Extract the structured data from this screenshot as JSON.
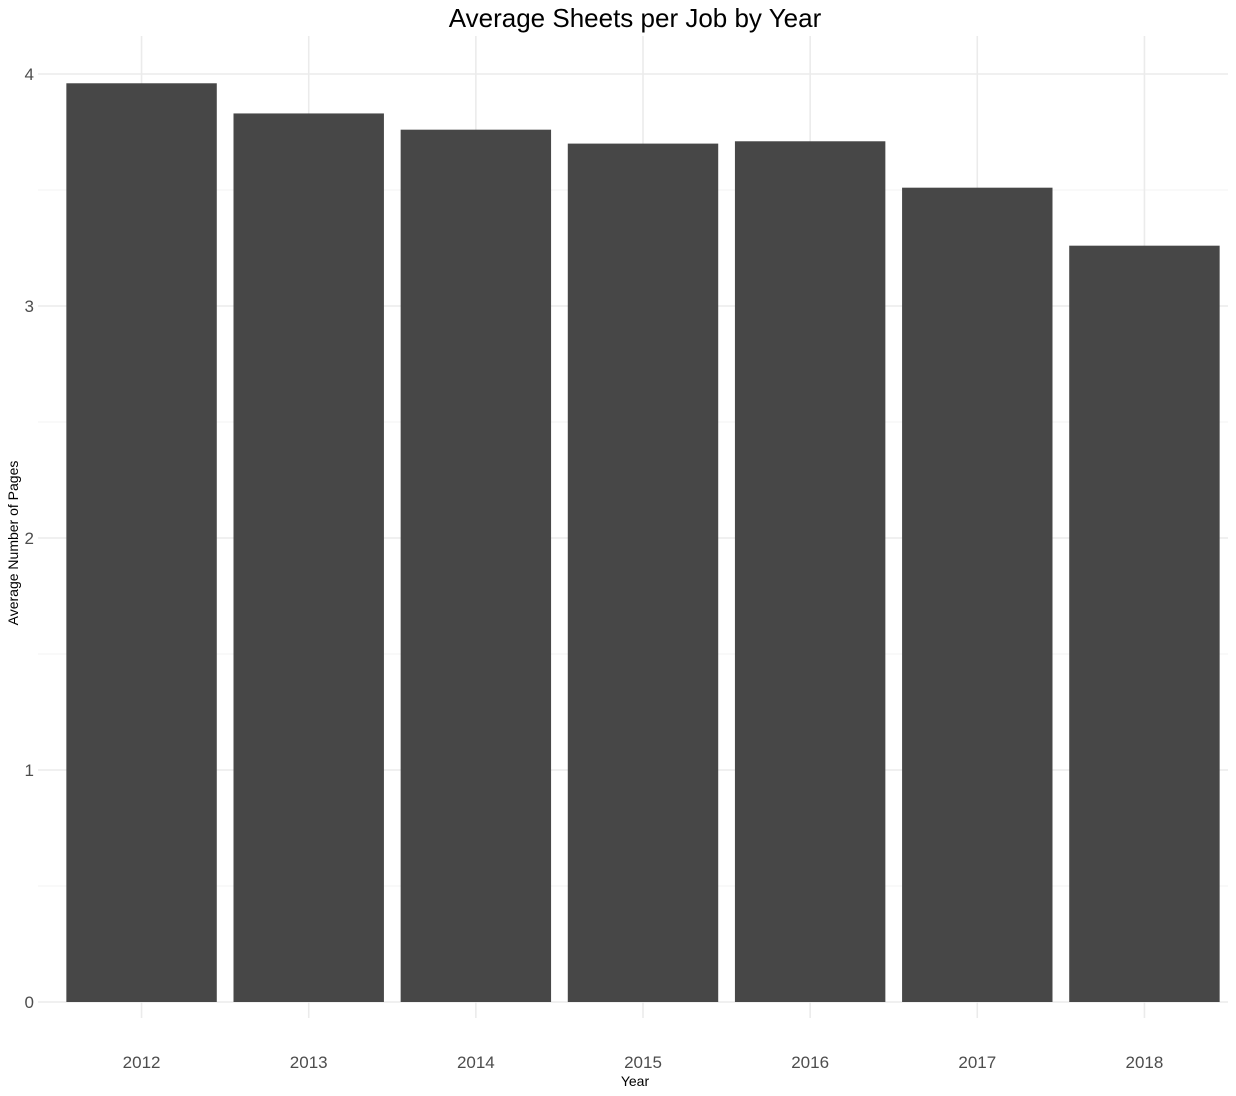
{
  "chart_data": {
    "type": "bar",
    "title": "Average Sheets per Job by Year",
    "xlabel": "Year",
    "ylabel": "Average Number of Pages",
    "categories": [
      "2012",
      "2013",
      "2014",
      "2015",
      "2016",
      "2017",
      "2018"
    ],
    "values": [
      3.96,
      3.83,
      3.76,
      3.7,
      3.71,
      3.51,
      3.26
    ],
    "ylim": [
      0,
      4.12
    ],
    "yticks": [
      0,
      1,
      2,
      3,
      4
    ],
    "grid": true,
    "legend": "none",
    "bar_color": "#474747"
  }
}
